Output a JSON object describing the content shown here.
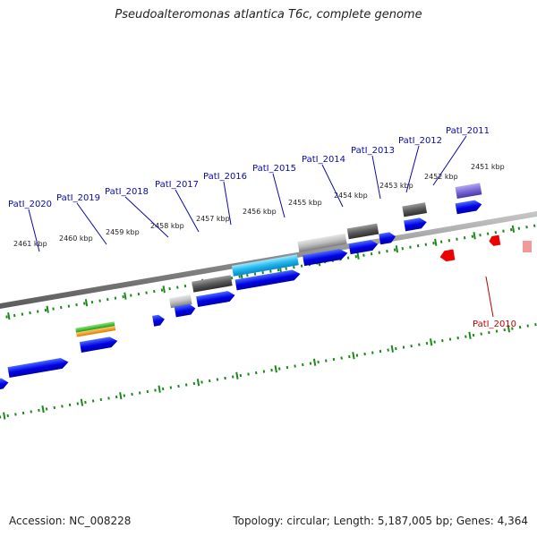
{
  "title": "Pseudoalteromonas atlantica T6c, complete genome",
  "accession": "Accession: NC_008228",
  "summary": "Topology: circular; Length: 5,187,005 bp; Genes: 4,364",
  "colors": {
    "cds_forward": "#0000e6",
    "cds_reverse": "#ee0000",
    "gene_label_forward": "#0a0aa8",
    "gene_label_reverse": "#c00000",
    "tick": "#1a8a1a",
    "backbone": "#8a8a8a"
  },
  "kbp_labels": [
    "2451 kbp",
    "2452 kbp",
    "2453 kbp",
    "2454 kbp",
    "2455 kbp",
    "2456 kbp",
    "2457 kbp",
    "2458 kbp",
    "2459 kbp",
    "2460 kbp",
    "2461 kbp"
  ],
  "gene_labels": [
    {
      "name": "PatI_2011",
      "strand": "forward"
    },
    {
      "name": "PatI_2012",
      "strand": "forward"
    },
    {
      "name": "PatI_2013",
      "strand": "forward"
    },
    {
      "name": "PatI_2014",
      "strand": "forward"
    },
    {
      "name": "PatI_2015",
      "strand": "forward"
    },
    {
      "name": "PatI_2016",
      "strand": "forward"
    },
    {
      "name": "PatI_2017",
      "strand": "forward"
    },
    {
      "name": "PatI_2018",
      "strand": "forward"
    },
    {
      "name": "PatI_2019",
      "strand": "forward"
    },
    {
      "name": "PatI_2020",
      "strand": "forward"
    },
    {
      "name": "PatI_2010",
      "strand": "reverse"
    }
  ]
}
